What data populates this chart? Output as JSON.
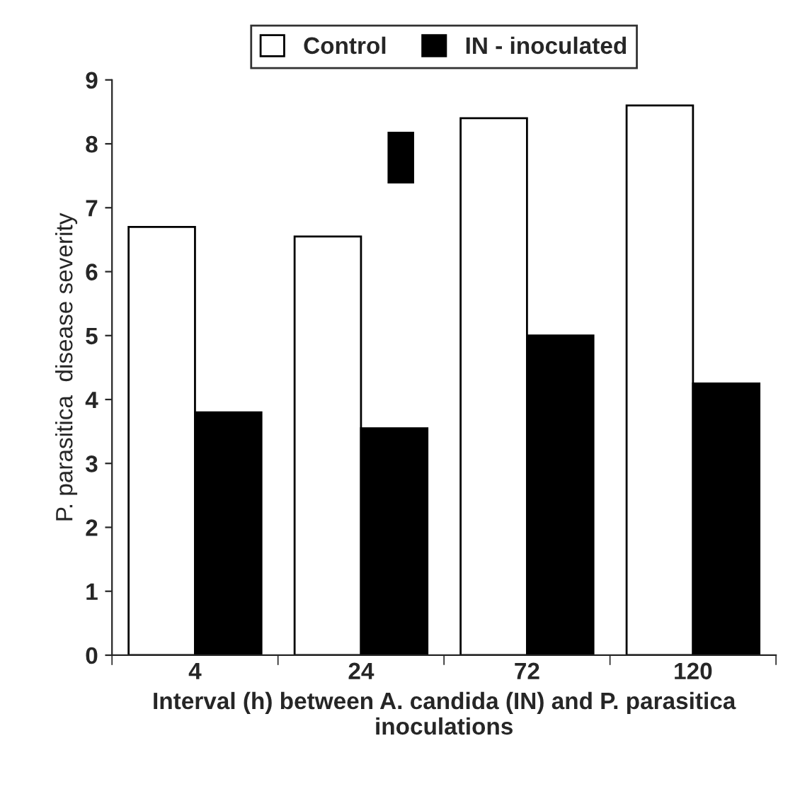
{
  "chart_data": {
    "type": "bar",
    "xlabel": "Interval (h) between A. candida (IN) and P. parasitica inoculations",
    "ylabel": "P. parasitica  disease severity",
    "categories": [
      "4",
      "24",
      "72",
      "120"
    ],
    "series": [
      {
        "name": "Control",
        "color": "#ffffff",
        "values": [
          6.7,
          6.55,
          8.4,
          8.6
        ]
      },
      {
        "name": "IN - inoculated",
        "color": "#000000",
        "values": [
          3.8,
          3.55,
          5.0,
          4.25
        ]
      }
    ],
    "ylim": [
      0,
      9
    ],
    "yticks": [
      0,
      1,
      2,
      3,
      4,
      5,
      6,
      7,
      8,
      9
    ],
    "legend": "top",
    "grid": false
  }
}
